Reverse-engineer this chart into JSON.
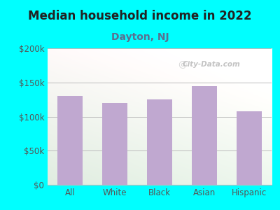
{
  "title": "Median household income in 2022",
  "subtitle": "Dayton, NJ",
  "categories": [
    "All",
    "White",
    "Black",
    "Asian",
    "Hispanic"
  ],
  "values": [
    130000,
    120000,
    125000,
    145000,
    108000
  ],
  "bar_color": "#c0a8d0",
  "background_color": "#00ffff",
  "plot_bg_topleft": "#d8eed8",
  "plot_bg_topright": "#f8fff8",
  "plot_bg_bottom": "#e8f8e8",
  "title_color": "#222222",
  "subtitle_color": "#5a7090",
  "tick_color": "#555555",
  "grid_color": "#bbbbbb",
  "ylim": [
    0,
    200000
  ],
  "yticks": [
    0,
    50000,
    100000,
    150000,
    200000
  ],
  "ytick_labels": [
    "$0",
    "$50k",
    "$100k",
    "$150k",
    "$200k"
  ],
  "watermark": "City-Data.com",
  "title_fontsize": 12,
  "subtitle_fontsize": 10,
  "tick_fontsize": 8.5
}
